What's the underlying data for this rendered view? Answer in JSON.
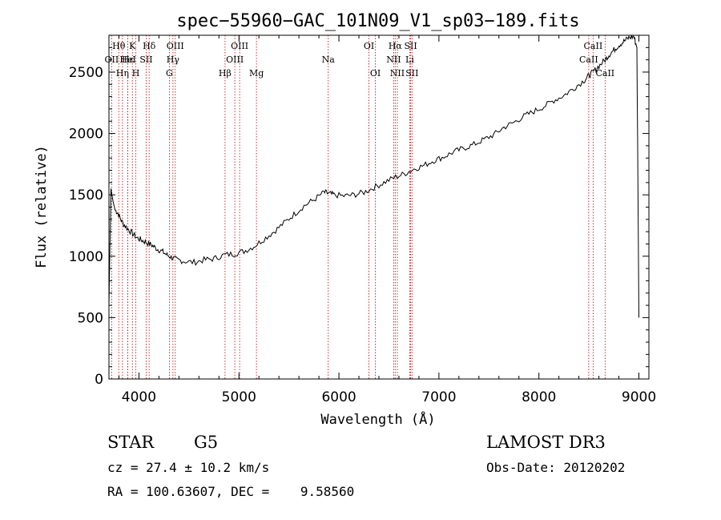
{
  "chart_data": {
    "type": "line",
    "title": "spec−55960−GAC_101N09_V1_sp03−189.fits",
    "xlabel": "Wavelength (Å)",
    "ylabel": "Flux (relative)",
    "xlim": [
      3700,
      9100
    ],
    "ylim": [
      0,
      2800
    ],
    "xticks": [
      4000,
      5000,
      6000,
      7000,
      8000,
      9000
    ],
    "yticks": [
      0,
      500,
      1000,
      1500,
      2000,
      2500
    ],
    "spectrum": {
      "x": [
        3700,
        3720,
        3740,
        3760,
        3790,
        3830,
        3880,
        3930,
        3980,
        4030,
        4080,
        4130,
        4180,
        4230,
        4280,
        4330,
        4380,
        4450,
        4550,
        4650,
        4750,
        4850,
        4950,
        5050,
        5150,
        5250,
        5350,
        5450,
        5550,
        5650,
        5750,
        5850,
        5900,
        5950,
        6050,
        6150,
        6250,
        6350,
        6450,
        6550,
        6650,
        6750,
        6850,
        6950,
        7050,
        7150,
        7250,
        7350,
        7450,
        7550,
        7650,
        7750,
        7850,
        7950,
        8050,
        8150,
        8250,
        8350,
        8450,
        8498,
        8542,
        8600,
        8662,
        8700,
        8750,
        8800,
        8850,
        8900,
        8950,
        8980,
        9000
      ],
      "y": [
        600,
        1550,
        1450,
        1380,
        1350,
        1280,
        1230,
        1190,
        1150,
        1130,
        1110,
        1090,
        1060,
        1040,
        1010,
        990,
        970,
        960,
        950,
        970,
        980,
        1010,
        1020,
        1040,
        1080,
        1140,
        1200,
        1270,
        1340,
        1410,
        1460,
        1520,
        1510,
        1500,
        1490,
        1500,
        1520,
        1560,
        1600,
        1640,
        1670,
        1710,
        1740,
        1780,
        1810,
        1850,
        1880,
        1910,
        1950,
        1990,
        2050,
        2090,
        2140,
        2180,
        2220,
        2270,
        2310,
        2370,
        2430,
        2470,
        2500,
        2550,
        2600,
        2640,
        2680,
        2720,
        2750,
        2780,
        2790,
        2700,
        500
      ]
    },
    "line_markers": [
      {
        "label": "Hθ",
        "wavelength": 3798,
        "row": 1
      },
      {
        "label": "OII",
        "wavelength": 3727,
        "row": 2
      },
      {
        "label": "Hη",
        "wavelength": 3835,
        "row": 3
      },
      {
        "label": "Hε",
        "wavelength": 3889,
        "row": 2
      },
      {
        "label": "K",
        "wavelength": 3934,
        "row": 1
      },
      {
        "label": "HeI",
        "wavelength": 3889,
        "row": 2
      },
      {
        "label": "SII",
        "wavelength": 4072,
        "row": 2
      },
      {
        "label": "H",
        "wavelength": 3969,
        "row": 3
      },
      {
        "label": "Hδ",
        "wavelength": 4102,
        "row": 1
      },
      {
        "label": "OIII",
        "wavelength": 4363,
        "row": 1
      },
      {
        "label": "Hγ",
        "wavelength": 4340,
        "row": 2
      },
      {
        "label": "G",
        "wavelength": 4304,
        "row": 3
      },
      {
        "label": "Hβ",
        "wavelength": 4861,
        "row": 3
      },
      {
        "label": "OIII",
        "wavelength": 4959,
        "row": 2
      },
      {
        "label": "OIII",
        "wavelength": 5007,
        "row": 1
      },
      {
        "label": "Mg",
        "wavelength": 5175,
        "row": 3
      },
      {
        "label": "Na",
        "wavelength": 5893,
        "row": 2
      },
      {
        "label": "OI",
        "wavelength": 6300,
        "row": 1
      },
      {
        "label": "OI",
        "wavelength": 6364,
        "row": 3
      },
      {
        "label": "Hα",
        "wavelength": 6563,
        "row": 1
      },
      {
        "label": "NII",
        "wavelength": 6548,
        "row": 2
      },
      {
        "label": "NII",
        "wavelength": 6584,
        "row": 3
      },
      {
        "label": "SII",
        "wavelength": 6717,
        "row": 1
      },
      {
        "label": "Li",
        "wavelength": 6708,
        "row": 2
      },
      {
        "label": "SII",
        "wavelength": 6731,
        "row": 3
      },
      {
        "label": "CaII",
        "wavelength": 8542,
        "row": 1
      },
      {
        "label": "CaII",
        "wavelength": 8498,
        "row": 2
      },
      {
        "label": "CaII",
        "wavelength": 8662,
        "row": 3
      }
    ],
    "colors": {
      "spectrum": "#000000",
      "markers": "#c00000",
      "axes": "#000000"
    }
  },
  "info": {
    "object_class": "STAR",
    "subclass": "G5",
    "survey": "LAMOST DR3",
    "cz": "cz = 27.4 ± 10.2 km/s",
    "obs_date": "Obs-Date: 20120202",
    "radec": "RA = 100.63607, DEC =    9.58560"
  }
}
